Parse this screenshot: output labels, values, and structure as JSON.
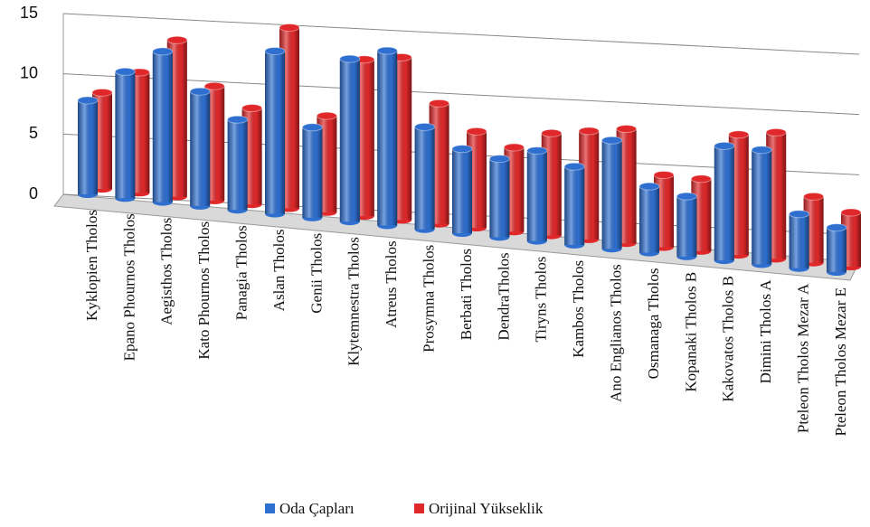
{
  "chart_data": {
    "type": "bar3d",
    "categories": [
      "Kyklopien Tholos",
      "Epano Phournos Tholos",
      "Aegisthos Tholos",
      "Kato Phournos Tholos",
      "Panagia Tholos",
      "Aslan Tholos",
      "Genii Tholos",
      "Klytemnestra Tholos",
      "Atreus Tholos",
      "Prosymna Tholos",
      "Berbati Tholos",
      "DendraTholos",
      "Tiryns Tholos",
      "Kambos Tholos",
      "Ano Englianos Tholos",
      "Osmanaga Tholos",
      "Kopanaki Tholos B",
      "Kakovatos Tholos B",
      "Dimini Tholos A",
      "Pteleon Tholos Mezar A",
      "Pteleon Tholos Mezar E"
    ],
    "series": [
      {
        "name": "Oda Çapları",
        "color": "#2e6fd0",
        "values": [
          7.8,
          10.5,
          12.5,
          9.5,
          7.5,
          13.5,
          7.5,
          13.5,
          14.5,
          8.5,
          7.0,
          6.5,
          7.5,
          6.5,
          9.0,
          5.5,
          5.0,
          9.5,
          9.5,
          4.5,
          3.7
        ]
      },
      {
        "name": "Orijinal Yükseklik",
        "color": "#e0282a",
        "values": [
          8,
          10,
          13,
          9.5,
          8,
          15,
          8,
          13,
          13.5,
          10,
          8,
          7,
          8.5,
          9,
          9.5,
          6,
          6,
          10,
          10.5,
          5.5,
          4.5
        ]
      }
    ],
    "ylim": [
      0,
      15
    ],
    "yticks": [
      0,
      5,
      10,
      15
    ],
    "grid": true,
    "legend": "bottom"
  }
}
